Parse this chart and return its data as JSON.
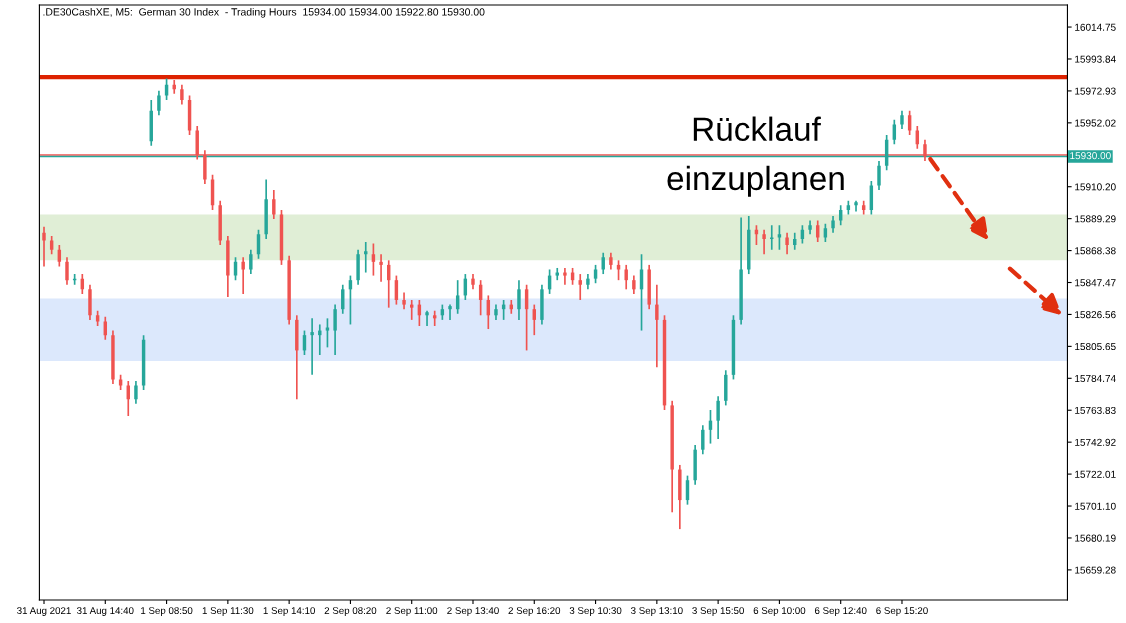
{
  "chart_data": {
    "type": "candlestick",
    "title": ".DE30CashXE, M5:  German 30 Index  - Trading Hours  15934.00 15934.00 15922.80 15930.00",
    "categories": [
      "31 Aug 2021",
      null,
      null,
      null,
      null,
      null,
      null,
      null,
      "31 Aug 14:40",
      null,
      null,
      null,
      null,
      null,
      null,
      null,
      "1 Sep 08:50",
      null,
      null,
      null,
      null,
      null,
      null,
      null,
      "1 Sep 11:30",
      null,
      null,
      null,
      null,
      null,
      null,
      null,
      "1 Sep 14:10",
      null,
      null,
      null,
      null,
      null,
      null,
      null,
      "2 Sep 08:20",
      null,
      null,
      null,
      null,
      null,
      null,
      null,
      "2 Sep 11:00",
      null,
      null,
      null,
      null,
      null,
      null,
      null,
      "2 Sep 13:40",
      null,
      null,
      null,
      null,
      null,
      null,
      null,
      "2 Sep 16:20",
      null,
      null,
      null,
      null,
      null,
      null,
      null,
      "3 Sep 10:30",
      null,
      null,
      null,
      null,
      null,
      null,
      null,
      "3 Sep 13:10",
      null,
      null,
      null,
      null,
      null,
      null,
      null,
      "3 Sep 15:50",
      null,
      null,
      null,
      null,
      null,
      null,
      null,
      "6 Sep 10:00",
      null,
      null,
      null,
      null,
      null,
      null,
      null,
      "6 Sep 12:40",
      null,
      null,
      null,
      null,
      null,
      null,
      null,
      "6 Sep 15:20",
      null,
      null,
      null,
      null,
      null,
      null,
      null,
      null,
      null,
      null,
      null,
      null,
      null,
      null,
      null,
      null,
      null,
      null,
      null,
      null,
      null
    ],
    "ohlc": [
      [
        15880,
        15884,
        15858,
        15875
      ],
      [
        15875,
        15878,
        15866,
        15869
      ],
      [
        15869,
        15872,
        15858,
        15861
      ],
      [
        15861,
        15864,
        15846,
        15849
      ],
      [
        15849,
        15853,
        15846,
        15850
      ],
      [
        15850,
        15853,
        15840,
        15843
      ],
      [
        15843,
        15846,
        15823,
        15826
      ],
      [
        15826,
        15829,
        15819,
        15822
      ],
      [
        15822,
        15825,
        15810,
        15813
      ],
      [
        15813,
        15816,
        15781,
        15784
      ],
      [
        15784,
        15787,
        15777,
        15780
      ],
      [
        15780,
        15783,
        15760,
        15771
      ],
      [
        15771,
        15783,
        15768,
        15780
      ],
      [
        15780,
        15813,
        15777,
        15810
      ],
      [
        15940,
        15967,
        15937,
        15960
      ],
      [
        15960,
        15973,
        15957,
        15970
      ],
      [
        15970,
        15981,
        15967,
        15977
      ],
      [
        15977,
        15980,
        15971,
        15974
      ],
      [
        15974,
        15977,
        15964,
        15967
      ],
      [
        15967,
        15970,
        15944,
        15947
      ],
      [
        15947,
        15950,
        15928,
        15931
      ],
      [
        15931,
        15934,
        15912,
        15915
      ],
      [
        15915,
        15918,
        15895,
        15898
      ],
      [
        15898,
        15901,
        15872,
        15875
      ],
      [
        15875,
        15878,
        15838,
        15852
      ],
      [
        15852,
        15864,
        15849,
        15861
      ],
      [
        15861,
        15864,
        15840,
        15856
      ],
      [
        15856,
        15869,
        15853,
        15866
      ],
      [
        15866,
        15882,
        15863,
        15879
      ],
      [
        15879,
        15915,
        15876,
        15902
      ],
      [
        15902,
        15908,
        15889,
        15892
      ],
      [
        15892,
        15895,
        15859,
        15862
      ],
      [
        15862,
        15865,
        15820,
        15823
      ],
      [
        15823,
        15826,
        15771,
        15803
      ],
      [
        15803,
        15816,
        15800,
        15813
      ],
      [
        15813,
        15824,
        15787,
        15815
      ],
      [
        15813,
        15820,
        15800,
        15816
      ],
      [
        15816,
        15824,
        15805,
        15818
      ],
      [
        15816,
        15833,
        15800,
        15830
      ],
      [
        15830,
        15846,
        15827,
        15843
      ],
      [
        15843,
        15852,
        15820,
        15849
      ],
      [
        15849,
        15869,
        15846,
        15866
      ],
      [
        15866,
        15874,
        15854,
        15868
      ],
      [
        15866,
        15873,
        15852,
        15861
      ],
      [
        15861,
        15866,
        15848,
        15859
      ],
      [
        15859,
        15862,
        15831,
        15849
      ],
      [
        15849,
        15852,
        15833,
        15836
      ],
      [
        15836,
        15841,
        15830,
        15833
      ],
      [
        15833,
        15836,
        15823,
        15831
      ],
      [
        15833,
        15836,
        15819,
        15826
      ],
      [
        15826,
        15829,
        15819,
        15828
      ],
      [
        15826,
        15829,
        15819,
        15824
      ],
      [
        15826,
        15833,
        15823,
        15830
      ],
      [
        15830,
        15833,
        15823,
        15832
      ],
      [
        15830,
        15849,
        15827,
        15839
      ],
      [
        15839,
        15853,
        15836,
        15850
      ],
      [
        15850,
        15853,
        15843,
        15846
      ],
      [
        15846,
        15849,
        15826,
        15836
      ],
      [
        15836,
        15839,
        15817,
        15826
      ],
      [
        15826,
        15833,
        15823,
        15830
      ],
      [
        15830,
        15836,
        15823,
        15833
      ],
      [
        15833,
        15836,
        15827,
        15830
      ],
      [
        15830,
        15849,
        15823,
        15843
      ],
      [
        15843,
        15846,
        15803,
        15830
      ],
      [
        15830,
        15833,
        15813,
        15823
      ],
      [
        15823,
        15846,
        15820,
        15843
      ],
      [
        15843,
        15856,
        15840,
        15852
      ],
      [
        15852,
        15857,
        15849,
        15854
      ],
      [
        15854,
        15857,
        15846,
        15852
      ],
      [
        15854,
        15857,
        15846,
        15849
      ],
      [
        15849,
        15853,
        15836,
        15846
      ],
      [
        15846,
        15853,
        15843,
        15850
      ],
      [
        15850,
        15859,
        15847,
        15856
      ],
      [
        15856,
        15867,
        15853,
        15864
      ],
      [
        15864,
        15867,
        15856,
        15859
      ],
      [
        15859,
        15862,
        15849,
        15856
      ],
      [
        15856,
        15859,
        15843,
        15849
      ],
      [
        15849,
        15852,
        15840,
        15843
      ],
      [
        15843,
        15866,
        15816,
        15856
      ],
      [
        15856,
        15859,
        15830,
        15833
      ],
      [
        15833,
        15846,
        15792,
        15823
      ],
      [
        15823,
        15826,
        15764,
        15767
      ],
      [
        15767,
        15770,
        15697,
        15725
      ],
      [
        15725,
        15728,
        15686,
        15705
      ],
      [
        15705,
        15721,
        15702,
        15718
      ],
      [
        15718,
        15741,
        15715,
        15738
      ],
      [
        15738,
        15754,
        15735,
        15751
      ],
      [
        15751,
        15764,
        15742,
        15757
      ],
      [
        15757,
        15773,
        15745,
        15770
      ],
      [
        15770,
        15790,
        15767,
        15787
      ],
      [
        15787,
        15826,
        15784,
        15823
      ],
      [
        15823,
        15890,
        15820,
        15856
      ],
      [
        15856,
        15891,
        15853,
        15882
      ],
      [
        15882,
        15885,
        15872,
        15879
      ],
      [
        15879,
        15882,
        15866,
        15876
      ],
      [
        15876,
        15885,
        15869,
        15877
      ],
      [
        15877,
        15885,
        15869,
        15879
      ],
      [
        15877,
        15880,
        15866,
        15872
      ],
      [
        15872,
        15880,
        15869,
        15876
      ],
      [
        15876,
        15885,
        15873,
        15882
      ],
      [
        15882,
        15888,
        15879,
        15885
      ],
      [
        15885,
        15888,
        15874,
        15877
      ],
      [
        15877,
        15886,
        15874,
        15883
      ],
      [
        15883,
        15891,
        15880,
        15888
      ],
      [
        15888,
        15898,
        15885,
        15895
      ],
      [
        15895,
        15901,
        15892,
        15898
      ],
      [
        15898,
        15901,
        15894,
        15900
      ],
      [
        15898,
        15901,
        15892,
        15895
      ],
      [
        15895,
        15914,
        15892,
        15911
      ],
      [
        15911,
        15927,
        15908,
        15924
      ],
      [
        15924,
        15944,
        15921,
        15941
      ],
      [
        15941,
        15954,
        15938,
        15951
      ],
      [
        15951,
        15960,
        15948,
        15957
      ],
      [
        15957,
        15960,
        15944,
        15947
      ],
      [
        15947,
        15950,
        15935,
        15938
      ],
      [
        15938,
        15941,
        15927,
        15930
      ],
      null,
      null,
      null,
      null,
      null,
      null,
      null,
      null,
      null,
      null,
      null,
      null,
      null,
      null,
      null,
      null,
      null,
      null
    ],
    "colors": [
      "#ef5350",
      "#ef5350",
      "#ef5350",
      "#ef5350",
      "#26a69a",
      "#ef5350",
      "#ef5350",
      "#ef5350",
      "#ef5350",
      "#ef5350",
      "#ef5350",
      "#ef5350",
      "#26a69a",
      "#26a69a",
      "#26a69a",
      "#26a69a",
      "#26a69a",
      "#ef5350",
      "#ef5350",
      "#ef5350",
      "#ef5350",
      "#ef5350",
      "#ef5350",
      "#ef5350",
      "#ef5350",
      "#26a69a",
      "#ef5350",
      "#26a69a",
      "#26a69a",
      "#26a69a",
      "#ef5350",
      "#ef5350",
      "#ef5350",
      "#ef5350",
      "#26a69a",
      "#26a69a",
      "#26a69a",
      "#26a69a",
      "#26a69a",
      "#26a69a",
      "#26a69a",
      "#26a69a",
      "#26a69a",
      "#ef5350",
      "#ef5350",
      "#ef5350",
      "#ef5350",
      "#ef5350",
      "#ef5350",
      "#ef5350",
      "#26a69a",
      "#ef5350",
      "#26a69a",
      "#26a69a",
      "#26a69a",
      "#26a69a",
      "#ef5350",
      "#ef5350",
      "#ef5350",
      "#26a69a",
      "#26a69a",
      "#ef5350",
      "#26a69a",
      "#ef5350",
      "#ef5350",
      "#26a69a",
      "#26a69a",
      "#26a69a",
      "#ef5350",
      "#ef5350",
      "#ef5350",
      "#26a69a",
      "#26a69a",
      "#26a69a",
      "#ef5350",
      "#ef5350",
      "#ef5350",
      "#ef5350",
      "#26a69a",
      "#ef5350",
      "#ef5350",
      "#ef5350",
      "#ef5350",
      "#ef5350",
      "#26a69a",
      "#26a69a",
      "#26a69a",
      "#26a69a",
      "#26a69a",
      "#26a69a",
      "#26a69a",
      "#26a69a",
      "#26a69a",
      "#ef5350",
      "#ef5350",
      "#26a69a",
      "#26a69a",
      "#ef5350",
      "#26a69a",
      "#26a69a",
      "#26a69a",
      "#ef5350",
      "#26a69a",
      "#26a69a",
      "#26a69a",
      "#26a69a",
      "#26a69a",
      "#ef5350",
      "#26a69a",
      "#26a69a",
      "#26a69a",
      "#26a69a",
      "#26a69a",
      "#ef5350",
      "#ef5350",
      "#ef5350",
      null,
      null,
      null,
      null,
      null,
      null,
      null,
      null,
      null,
      null,
      null,
      null,
      null,
      null,
      null,
      null,
      null,
      null
    ],
    "ylim": [
      15639.6,
      16029.2
    ],
    "yticks": [
      15659.28,
      15680.19,
      {
        "value": 15701.1,
        "label": "15701.10"
      },
      15722.01,
      15742.92,
      15763.83,
      15784.74,
      15805.65,
      15826.56,
      15847.47,
      15868.38,
      15889.29,
      {
        "value": 15910.2,
        "label": "15910.20"
      },
      15952.02,
      15972.93,
      15993.84,
      16014.75
    ],
    "ref_lines": [
      {
        "axis": "y",
        "value": 15982,
        "color": "#dd2200"
      },
      {
        "axis": "y",
        "value": 15931,
        "color": "#ef5350"
      },
      {
        "axis": "y",
        "value": 15930,
        "label": "15930.00",
        "color": "#26a69a"
      }
    ],
    "bands": [
      {
        "axis": "y",
        "from": 15862,
        "to": 15892,
        "color": "#e0eed6"
      },
      {
        "axis": "y",
        "from": 15796,
        "to": 15837,
        "color": "#dce8fc"
      }
    ],
    "annotations": [
      "Rücklauf\neinzuplanen"
    ],
    "grid": false
  }
}
